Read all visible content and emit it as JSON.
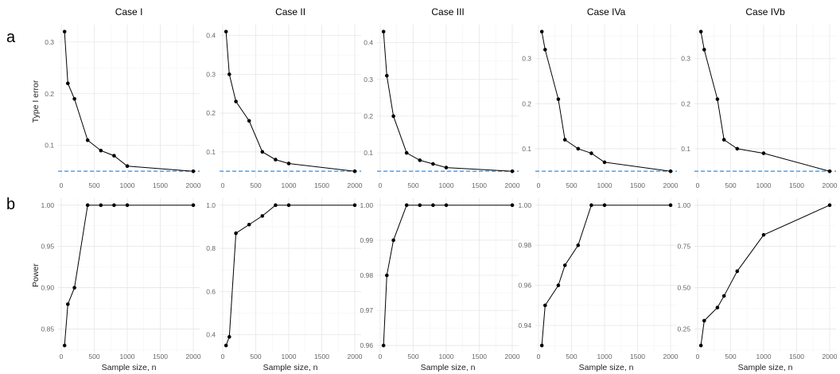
{
  "row_labels": [
    "a",
    "b"
  ],
  "chart_data": [
    {
      "type": "line",
      "row": "a",
      "title": "Case I",
      "ylabel": "Type I error",
      "xlabel": "",
      "x": [
        50,
        100,
        200,
        400,
        600,
        800,
        1000,
        2000
      ],
      "y": [
        0.32,
        0.22,
        0.19,
        0.11,
        0.09,
        0.08,
        0.06,
        0.05
      ],
      "xticks": [
        "0",
        "500",
        "1000",
        "1500",
        "2000"
      ],
      "yticks": [
        "0.1",
        "0.2",
        "0.3"
      ],
      "reference_line": {
        "y": 0.05,
        "color": "#5aa9f0",
        "style": "dashed"
      },
      "grid": true
    },
    {
      "type": "line",
      "row": "a",
      "title": "Case II",
      "ylabel": "",
      "xlabel": "",
      "x": [
        50,
        100,
        200,
        400,
        600,
        800,
        1000,
        2000
      ],
      "y": [
        0.41,
        0.3,
        0.23,
        0.18,
        0.1,
        0.08,
        0.07,
        0.05
      ],
      "xticks": [
        "0",
        "500",
        "1000",
        "1500",
        "2000"
      ],
      "yticks": [
        "0.1",
        "0.2",
        "0.3",
        "0.4"
      ],
      "reference_line": {
        "y": 0.05,
        "color": "#5aa9f0",
        "style": "dashed"
      },
      "grid": true
    },
    {
      "type": "line",
      "row": "a",
      "title": "Case III",
      "ylabel": "",
      "xlabel": "",
      "x": [
        50,
        100,
        200,
        400,
        600,
        800,
        1000,
        2000
      ],
      "y": [
        0.43,
        0.31,
        0.2,
        0.1,
        0.08,
        0.07,
        0.06,
        0.05
      ],
      "xticks": [
        "0",
        "500",
        "1000",
        "1500",
        "2000"
      ],
      "yticks": [
        "0.1",
        "0.2",
        "0.3",
        "0.4"
      ],
      "reference_line": {
        "y": 0.05,
        "color": "#5aa9f0",
        "style": "dashed"
      },
      "grid": true
    },
    {
      "type": "line",
      "row": "a",
      "title": "Case IVa",
      "ylabel": "",
      "xlabel": "",
      "x": [
        50,
        100,
        300,
        400,
        600,
        800,
        1000,
        2000
      ],
      "y": [
        0.36,
        0.32,
        0.21,
        0.12,
        0.1,
        0.09,
        0.07,
        0.05
      ],
      "xticks": [
        "0",
        "500",
        "1000",
        "1500",
        "2000"
      ],
      "yticks": [
        "0.1",
        "0.2",
        "0.3"
      ],
      "reference_line": {
        "y": 0.05,
        "color": "#5aa9f0",
        "style": "dashed"
      },
      "grid": true
    },
    {
      "type": "line",
      "row": "a",
      "title": "Case IVb",
      "ylabel": "",
      "xlabel": "",
      "x": [
        50,
        100,
        300,
        400,
        600,
        1000,
        2000
      ],
      "y": [
        0.36,
        0.32,
        0.21,
        0.12,
        0.1,
        0.09,
        0.05
      ],
      "xticks": [
        "0",
        "500",
        "1000",
        "1500",
        "2000"
      ],
      "yticks": [
        "0.1",
        "0.2",
        "0.3"
      ],
      "reference_line": {
        "y": 0.05,
        "color": "#5aa9f0",
        "style": "dashed"
      },
      "grid": true
    },
    {
      "type": "line",
      "row": "b",
      "title": "",
      "ylabel": "Power",
      "xlabel": "Sample size, n",
      "x": [
        50,
        100,
        200,
        400,
        600,
        800,
        1000,
        2000
      ],
      "y": [
        0.83,
        0.88,
        0.9,
        1.0,
        1.0,
        1.0,
        1.0,
        1.0
      ],
      "xticks": [
        "0",
        "500",
        "1000",
        "1500",
        "2000"
      ],
      "yticks": [
        "0.85",
        "0.90",
        "0.95",
        "1.00"
      ],
      "grid": true
    },
    {
      "type": "line",
      "row": "b",
      "title": "",
      "ylabel": "",
      "xlabel": "Sample size, n",
      "x": [
        50,
        100,
        200,
        400,
        600,
        800,
        1000,
        2000
      ],
      "y": [
        0.35,
        0.39,
        0.87,
        0.91,
        0.95,
        1.0,
        1.0,
        1.0
      ],
      "xticks": [
        "0",
        "500",
        "1000",
        "1500",
        "2000"
      ],
      "yticks": [
        "0.4",
        "0.6",
        "0.8",
        "1.0"
      ],
      "grid": true
    },
    {
      "type": "line",
      "row": "b",
      "title": "",
      "ylabel": "",
      "xlabel": "Sample size, n",
      "x": [
        50,
        100,
        200,
        400,
        600,
        800,
        1000,
        2000
      ],
      "y": [
        0.96,
        0.98,
        0.99,
        1.0,
        1.0,
        1.0,
        1.0,
        1.0
      ],
      "xticks": [
        "0",
        "500",
        "1000",
        "1500",
        "2000"
      ],
      "yticks": [
        "0.96",
        "0.97",
        "0.98",
        "0.99",
        "1.00"
      ],
      "grid": true
    },
    {
      "type": "line",
      "row": "b",
      "title": "",
      "ylabel": "",
      "xlabel": "Sample size, n",
      "x": [
        50,
        100,
        300,
        400,
        600,
        800,
        1000,
        2000
      ],
      "y": [
        0.93,
        0.95,
        0.96,
        0.97,
        0.98,
        1.0,
        1.0,
        1.0
      ],
      "xticks": [
        "0",
        "500",
        "1000",
        "1500",
        "2000"
      ],
      "yticks": [
        "0.94",
        "0.96",
        "0.98",
        "1.00"
      ],
      "grid": true
    },
    {
      "type": "line",
      "row": "b",
      "title": "",
      "ylabel": "",
      "xlabel": "Sample size, n",
      "x": [
        50,
        100,
        300,
        400,
        600,
        1000,
        2000
      ],
      "y": [
        0.15,
        0.3,
        0.38,
        0.45,
        0.6,
        0.82,
        1.0
      ],
      "xticks": [
        "0",
        "500",
        "1000",
        "1500",
        "2000"
      ],
      "yticks": [
        "0.25",
        "0.50",
        "0.75",
        "1.00"
      ],
      "grid": true
    }
  ]
}
